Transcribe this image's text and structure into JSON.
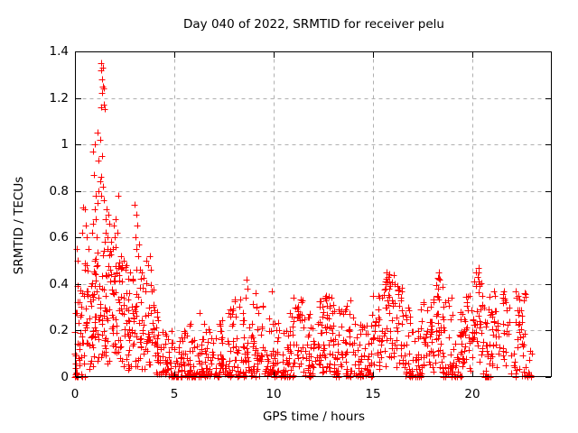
{
  "chart_data": {
    "type": "scatter",
    "title": "Day 040 of 2022, SRMTID for receiver pelu",
    "xlabel": "GPS time / hours",
    "ylabel": "SRMTID / TECUs",
    "xlim": [
      0,
      24
    ],
    "ylim": [
      0,
      1.4
    ],
    "xticks": [
      0,
      5,
      10,
      15,
      20
    ],
    "xtick_labels": [
      "0",
      "5",
      "10",
      "15",
      "20"
    ],
    "yticks": [
      0,
      0.2,
      0.4,
      0.6,
      0.8,
      1.0,
      1.2,
      1.4
    ],
    "ytick_labels": [
      "0",
      "0.2",
      "0.4",
      "0.6",
      "0.8",
      "1",
      "1.2",
      "1.4"
    ],
    "grid": true,
    "legend": "none",
    "marker": {
      "shape": "plus",
      "size": 7
    },
    "colors": {
      "marker": "#ff0000",
      "grid": "#b0b0b0",
      "axis": "#000000",
      "background": "#ffffff"
    },
    "seed": 40,
    "clusters": [
      [
        0.0,
        0.5,
        42,
        0.0,
        0.4,
        2
      ],
      [
        0.5,
        1.0,
        40,
        0.03,
        0.5,
        1
      ],
      [
        1.0,
        1.5,
        40,
        0.05,
        0.55,
        1
      ],
      [
        1.5,
        2.0,
        40,
        0.05,
        0.55,
        1
      ],
      [
        2.0,
        2.5,
        38,
        0.04,
        0.5,
        1
      ],
      [
        2.5,
        3.0,
        36,
        0.03,
        0.48,
        1
      ],
      [
        3.0,
        3.5,
        34,
        0.02,
        0.5,
        1
      ],
      [
        3.5,
        4.0,
        32,
        0.02,
        0.42,
        1
      ],
      [
        4.0,
        4.5,
        30,
        0.01,
        0.28,
        2
      ],
      [
        4.5,
        5.0,
        32,
        0.0,
        0.2,
        2
      ],
      [
        5.0,
        5.5,
        30,
        0.0,
        0.18,
        2
      ],
      [
        5.5,
        6.0,
        32,
        0.0,
        0.24,
        2
      ],
      [
        6.0,
        6.5,
        32,
        0.0,
        0.28,
        2
      ],
      [
        6.5,
        7.0,
        30,
        0.0,
        0.24,
        2
      ],
      [
        7.0,
        7.5,
        32,
        0.0,
        0.26,
        2
      ],
      [
        7.5,
        8.0,
        30,
        0.0,
        0.3,
        2
      ],
      [
        8.0,
        8.5,
        32,
        0.0,
        0.34,
        2
      ],
      [
        8.5,
        9.0,
        30,
        0.0,
        0.32,
        2
      ],
      [
        9.0,
        9.5,
        30,
        0.0,
        0.33,
        2
      ],
      [
        9.5,
        10.0,
        28,
        0.0,
        0.26,
        2
      ],
      [
        10.0,
        10.5,
        28,
        0.0,
        0.26,
        2
      ],
      [
        10.5,
        11.0,
        30,
        0.0,
        0.3,
        2
      ],
      [
        11.0,
        11.5,
        32,
        0.02,
        0.34,
        1
      ],
      [
        11.5,
        12.0,
        30,
        0.0,
        0.3,
        2
      ],
      [
        12.0,
        12.5,
        32,
        0.02,
        0.34,
        1
      ],
      [
        12.5,
        13.0,
        34,
        0.02,
        0.35,
        1
      ],
      [
        13.0,
        13.5,
        32,
        0.0,
        0.31,
        2
      ],
      [
        13.5,
        14.0,
        30,
        0.0,
        0.33,
        2
      ],
      [
        14.0,
        14.5,
        28,
        0.0,
        0.26,
        2
      ],
      [
        14.5,
        15.0,
        28,
        0.0,
        0.3,
        2
      ],
      [
        15.0,
        15.5,
        32,
        0.02,
        0.38,
        1
      ],
      [
        15.5,
        16.0,
        32,
        0.04,
        0.46,
        1
      ],
      [
        16.0,
        16.5,
        30,
        0.02,
        0.4,
        1
      ],
      [
        16.5,
        17.0,
        28,
        0.0,
        0.3,
        2
      ],
      [
        17.0,
        17.5,
        30,
        0.0,
        0.3,
        2
      ],
      [
        17.5,
        18.0,
        30,
        0.02,
        0.35,
        1
      ],
      [
        18.0,
        18.5,
        30,
        0.02,
        0.43,
        1
      ],
      [
        18.5,
        19.0,
        30,
        0.0,
        0.35,
        2
      ],
      [
        19.0,
        19.5,
        30,
        0.0,
        0.3,
        2
      ],
      [
        19.5,
        20.0,
        30,
        0.02,
        0.36,
        1
      ],
      [
        20.0,
        20.5,
        32,
        0.04,
        0.47,
        1
      ],
      [
        20.5,
        21.0,
        30,
        0.0,
        0.35,
        2
      ],
      [
        21.0,
        21.4,
        22,
        0.02,
        0.3,
        1
      ],
      [
        21.5,
        21.9,
        20,
        0.05,
        0.37,
        1
      ],
      [
        21.9,
        22.2,
        8,
        0.0,
        0.12,
        2
      ],
      [
        22.2,
        22.7,
        32,
        0.0,
        0.37,
        1
      ],
      [
        22.7,
        23.0,
        10,
        0.0,
        0.15,
        2
      ]
    ],
    "points": [
      [
        0.02,
        0.0
      ],
      [
        0.05,
        0.01
      ],
      [
        0.1,
        0.55
      ],
      [
        0.15,
        0.5
      ],
      [
        0.38,
        0.62
      ],
      [
        0.42,
        0.73
      ],
      [
        0.5,
        0.72
      ],
      [
        0.55,
        0.65
      ],
      [
        0.6,
        0.6
      ],
      [
        0.68,
        0.55
      ],
      [
        0.85,
        0.62
      ],
      [
        0.9,
        0.97
      ],
      [
        0.9,
        0.66
      ],
      [
        0.95,
        0.87
      ],
      [
        1.0,
        1.0
      ],
      [
        1.0,
        0.72
      ],
      [
        1.05,
        0.78
      ],
      [
        1.05,
        0.68
      ],
      [
        1.1,
        0.6
      ],
      [
        1.15,
        1.05
      ],
      [
        1.15,
        0.75
      ],
      [
        1.2,
        0.93
      ],
      [
        1.2,
        0.8
      ],
      [
        1.25,
        0.84
      ],
      [
        1.28,
        1.02
      ],
      [
        1.3,
        1.35
      ],
      [
        1.3,
        1.16
      ],
      [
        1.31,
        0.78
      ],
      [
        1.32,
        0.86
      ],
      [
        1.33,
        1.32
      ],
      [
        1.35,
        0.95
      ],
      [
        1.36,
        1.28
      ],
      [
        1.38,
        1.22
      ],
      [
        1.4,
        1.25
      ],
      [
        1.4,
        0.82
      ],
      [
        1.42,
        1.33
      ],
      [
        1.44,
        1.17
      ],
      [
        1.45,
        1.24
      ],
      [
        1.46,
        0.76
      ],
      [
        1.5,
        1.15
      ],
      [
        1.5,
        0.58
      ],
      [
        1.55,
        0.68
      ],
      [
        1.55,
        0.62
      ],
      [
        1.6,
        0.72
      ],
      [
        1.62,
        0.55
      ],
      [
        1.64,
        0.6
      ],
      [
        1.66,
        0.7
      ],
      [
        1.72,
        0.66
      ],
      [
        1.8,
        0.58
      ],
      [
        1.9,
        0.55
      ],
      [
        1.95,
        0.65
      ],
      [
        2.0,
        0.6
      ],
      [
        2.05,
        0.68
      ],
      [
        2.06,
        0.56
      ],
      [
        2.15,
        0.62
      ],
      [
        2.2,
        0.78
      ],
      [
        2.3,
        0.52
      ],
      [
        2.45,
        0.5
      ],
      [
        2.6,
        0.48
      ],
      [
        2.75,
        0.45
      ],
      [
        2.9,
        0.42
      ],
      [
        3.02,
        0.74
      ],
      [
        3.05,
        0.6
      ],
      [
        3.08,
        0.7
      ],
      [
        3.1,
        0.55
      ],
      [
        3.12,
        0.65
      ],
      [
        3.18,
        0.52
      ],
      [
        3.22,
        0.57
      ],
      [
        3.6,
        0.5
      ],
      [
        3.7,
        0.48
      ],
      [
        3.75,
        0.52
      ],
      [
        3.8,
        0.46
      ],
      [
        8.6,
        0.34
      ],
      [
        8.65,
        0.42
      ],
      [
        8.68,
        0.38
      ],
      [
        9.1,
        0.36
      ],
      [
        9.9,
        0.37
      ],
      [
        10.05,
        0.0
      ],
      [
        10.07,
        0.01
      ],
      [
        12.6,
        0.34
      ],
      [
        12.65,
        0.33
      ],
      [
        15.65,
        0.38
      ],
      [
        15.7,
        0.45
      ],
      [
        15.75,
        0.43
      ],
      [
        15.8,
        0.41
      ],
      [
        16.05,
        0.44
      ],
      [
        16.1,
        0.4
      ],
      [
        18.25,
        0.38
      ],
      [
        18.3,
        0.45
      ],
      [
        18.35,
        0.42
      ],
      [
        20.28,
        0.43
      ],
      [
        20.3,
        0.47
      ],
      [
        20.32,
        0.45
      ],
      [
        20.35,
        0.4
      ],
      [
        21.1,
        0.37
      ],
      [
        21.15,
        0.35
      ],
      [
        21.6,
        0.37
      ],
      [
        21.65,
        0.33
      ],
      [
        22.2,
        0.37
      ],
      [
        22.3,
        0.35
      ],
      [
        22.6,
        0.33
      ]
    ]
  }
}
